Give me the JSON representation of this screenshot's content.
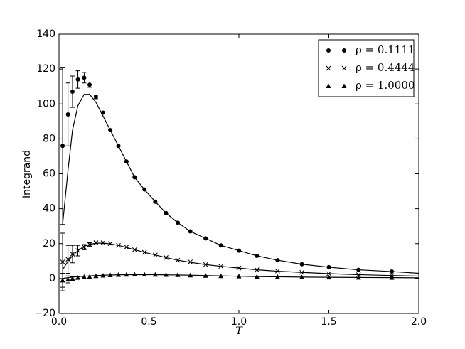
{
  "chart_data": {
    "type": "scatter",
    "xlabel": "T",
    "ylabel": "Integrand",
    "xlim": [
      0,
      2
    ],
    "ylim": [
      -20,
      140
    ],
    "xticks": [
      {
        "value": 0,
        "label": "0.0"
      },
      0.5,
      {
        "value": 1,
        "label": "1.0"
      },
      1.5,
      {
        "value": 2,
        "label": "2.0"
      }
    ],
    "yticks": [
      {
        "value": -20,
        "label": "−20"
      },
      0,
      20,
      40,
      60,
      80,
      100,
      120,
      140
    ],
    "legend": "upper right",
    "x": [
      0.02,
      0.05,
      0.075,
      0.105,
      0.14,
      0.17,
      0.205,
      0.245,
      0.285,
      0.33,
      0.375,
      0.42,
      0.475,
      0.535,
      0.595,
      0.66,
      0.73,
      0.815,
      0.9,
      1.0,
      1.1,
      1.215,
      1.35,
      1.5,
      1.665,
      1.85
    ],
    "fit_x": [
      0.02,
      0.05,
      0.075,
      0.105,
      0.14,
      0.17,
      0.205,
      0.245,
      0.285,
      0.33,
      0.375,
      0.42,
      0.475,
      0.535,
      0.595,
      0.66,
      0.73,
      0.815,
      0.9,
      1.0,
      1.1,
      1.215,
      1.35,
      1.5,
      1.665,
      1.85,
      2.0
    ],
    "series": [
      {
        "name": "ρ = 0.1111",
        "marker": "circle",
        "color": "#000000",
        "values": [
          76,
          94,
          107,
          114,
          115,
          111,
          104,
          95,
          85,
          76,
          67,
          58,
          51,
          44,
          37.5,
          32,
          27,
          23,
          19,
          16,
          13,
          10.5,
          8.2,
          6.5,
          5,
          4
        ],
        "errors": [
          45,
          18,
          9,
          5,
          3,
          1.5,
          1,
          0.5,
          0.5,
          0,
          0,
          0,
          0,
          0,
          0,
          0,
          0,
          0,
          0,
          0,
          0,
          0,
          0,
          0,
          0,
          0
        ],
        "fit": [
          31,
          62,
          85,
          99,
          105.5,
          105.5,
          101,
          93,
          85,
          76,
          67,
          58,
          51,
          44,
          37.5,
          32,
          27,
          23,
          19,
          16,
          13,
          10.5,
          8.2,
          6.5,
          5,
          4,
          3
        ]
      },
      {
        "name": "ρ = 0.4444",
        "marker": "x",
        "color": "#000000",
        "values": [
          9.5,
          11,
          14,
          16,
          18,
          19.5,
          20.5,
          20.5,
          20,
          19,
          18,
          16.5,
          15,
          13.5,
          12,
          10.5,
          9.5,
          8,
          7,
          6,
          5,
          4.3,
          3.5,
          2.8,
          2.2,
          1.7
        ],
        "errors": [
          16.5,
          8,
          5,
          3,
          1.5,
          1,
          0.5,
          0.5,
          0,
          0,
          0,
          0,
          0,
          0,
          0,
          0,
          0,
          0,
          0,
          0,
          0,
          0,
          0,
          0,
          0,
          0
        ],
        "fit": [
          5,
          10,
          13,
          16,
          18.5,
          19.5,
          20.2,
          20.3,
          19.8,
          19,
          17.8,
          16.5,
          15,
          13.5,
          12,
          10.5,
          9.3,
          8,
          7,
          6,
          5,
          4.2,
          3.5,
          2.8,
          2.2,
          1.7,
          1.4
        ]
      },
      {
        "name": "ρ = 1.0000",
        "marker": "triangle",
        "color": "#000000",
        "values": [
          -1,
          -0.5,
          0,
          0.5,
          1,
          1,
          1.5,
          1.8,
          2,
          2.2,
          2.3,
          2.4,
          2.4,
          2.3,
          2.2,
          2.1,
          1.9,
          1.7,
          1.5,
          1.3,
          1.1,
          1,
          0.8,
          0.7,
          0.6,
          0.5
        ],
        "errors": [
          4,
          2,
          1,
          0.5,
          0,
          0,
          0,
          0,
          0,
          0,
          0,
          0,
          0,
          0,
          0,
          0,
          0,
          0,
          0,
          0,
          0,
          0,
          0,
          0,
          0,
          0
        ],
        "fit": [
          0,
          0.5,
          0.8,
          1.1,
          1.3,
          1.5,
          1.7,
          1.9,
          2,
          2.1,
          2.2,
          2.2,
          2.2,
          2.2,
          2.1,
          2,
          1.9,
          1.7,
          1.5,
          1.3,
          1.1,
          1,
          0.8,
          0.7,
          0.6,
          0.5,
          0.4
        ]
      }
    ]
  }
}
